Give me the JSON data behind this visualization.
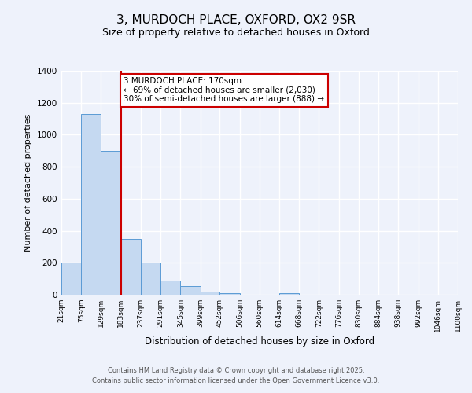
{
  "title_line1": "3, MURDOCH PLACE, OXFORD, OX2 9SR",
  "title_line2": "Size of property relative to detached houses in Oxford",
  "bar_edges": [
    21,
    75,
    129,
    183,
    237,
    291,
    345,
    399,
    452,
    506,
    560,
    614,
    668,
    722,
    776,
    830,
    884,
    938,
    992,
    1046,
    1100
  ],
  "bar_heights": [
    200,
    1130,
    900,
    350,
    200,
    90,
    55,
    20,
    10,
    0,
    0,
    10,
    0,
    0,
    0,
    0,
    0,
    0,
    0,
    0
  ],
  "bar_color": "#c5d9f1",
  "bar_edgecolor": "#5b9bd5",
  "vline_x": 183,
  "vline_color": "#cc0000",
  "xlabel": "Distribution of detached houses by size in Oxford",
  "ylabel": "Number of detached properties",
  "ylim": [
    0,
    1400
  ],
  "yticks": [
    0,
    200,
    400,
    600,
    800,
    1000,
    1200,
    1400
  ],
  "background_color": "#eef2fb",
  "grid_color": "#ffffff",
  "annotation_text": "3 MURDOCH PLACE: 170sqm\n← 69% of detached houses are smaller (2,030)\n30% of semi-detached houses are larger (888) →",
  "annotation_box_color": "#ffffff",
  "annotation_box_edgecolor": "#cc0000",
  "footer_line1": "Contains HM Land Registry data © Crown copyright and database right 2025.",
  "footer_line2": "Contains public sector information licensed under the Open Government Licence v3.0.",
  "title_fontsize": 11,
  "subtitle_fontsize": 9,
  "tick_label_fontsize": 6.5,
  "xlabel_fontsize": 8.5,
  "ylabel_fontsize": 8,
  "annotation_fontsize": 7.5,
  "footer_fontsize": 6
}
